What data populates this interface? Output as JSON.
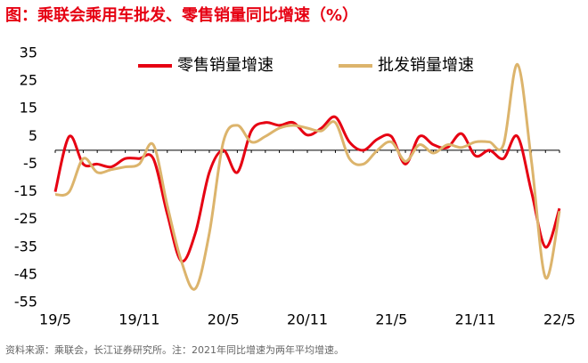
{
  "chart_data": {
    "type": "line",
    "title": "图：乘联会乘用车批发、零售销量同比增速（%）",
    "note": "资料来源：乘联会，长江证券研究所。注：2021年同比增速为两年平均增速。",
    "categories": [
      "19/5",
      null,
      null,
      null,
      null,
      null,
      "19/11",
      null,
      null,
      null,
      null,
      null,
      "20/5",
      null,
      null,
      null,
      null,
      null,
      "20/11",
      null,
      null,
      null,
      null,
      null,
      "21/5",
      null,
      null,
      null,
      null,
      null,
      "21/11",
      null,
      null,
      null,
      null,
      null,
      "22/5"
    ],
    "series": [
      {
        "name": "零售销量增速",
        "color": "#e60012",
        "values": [
          -15,
          5,
          -5,
          -5,
          -6,
          -3,
          -3,
          -3,
          -23,
          -40,
          -30,
          -8,
          0,
          -8,
          7,
          10,
          9,
          10,
          5.5,
          8,
          12,
          3,
          0,
          4,
          5,
          -5,
          5,
          2,
          1,
          6,
          -2,
          0,
          -3,
          5,
          -15,
          -35,
          -21
        ]
      },
      {
        "name": "批发销量增速",
        "color": "#dcb46c",
        "values": [
          -16,
          -15,
          -3,
          -8,
          -7,
          -6,
          -5,
          2,
          -20,
          -40,
          -50,
          -30,
          3,
          9,
          3,
          5,
          8,
          9,
          8,
          7,
          10,
          -3,
          -5,
          0,
          3,
          -4,
          2,
          -1,
          2,
          1,
          3,
          3,
          2,
          31,
          -4,
          -46,
          -22
        ]
      }
    ],
    "ylim": [
      -55,
      35
    ],
    "yticks": [
      -55,
      -45,
      -35,
      -25,
      -15,
      -5,
      5,
      15,
      25,
      35
    ]
  }
}
